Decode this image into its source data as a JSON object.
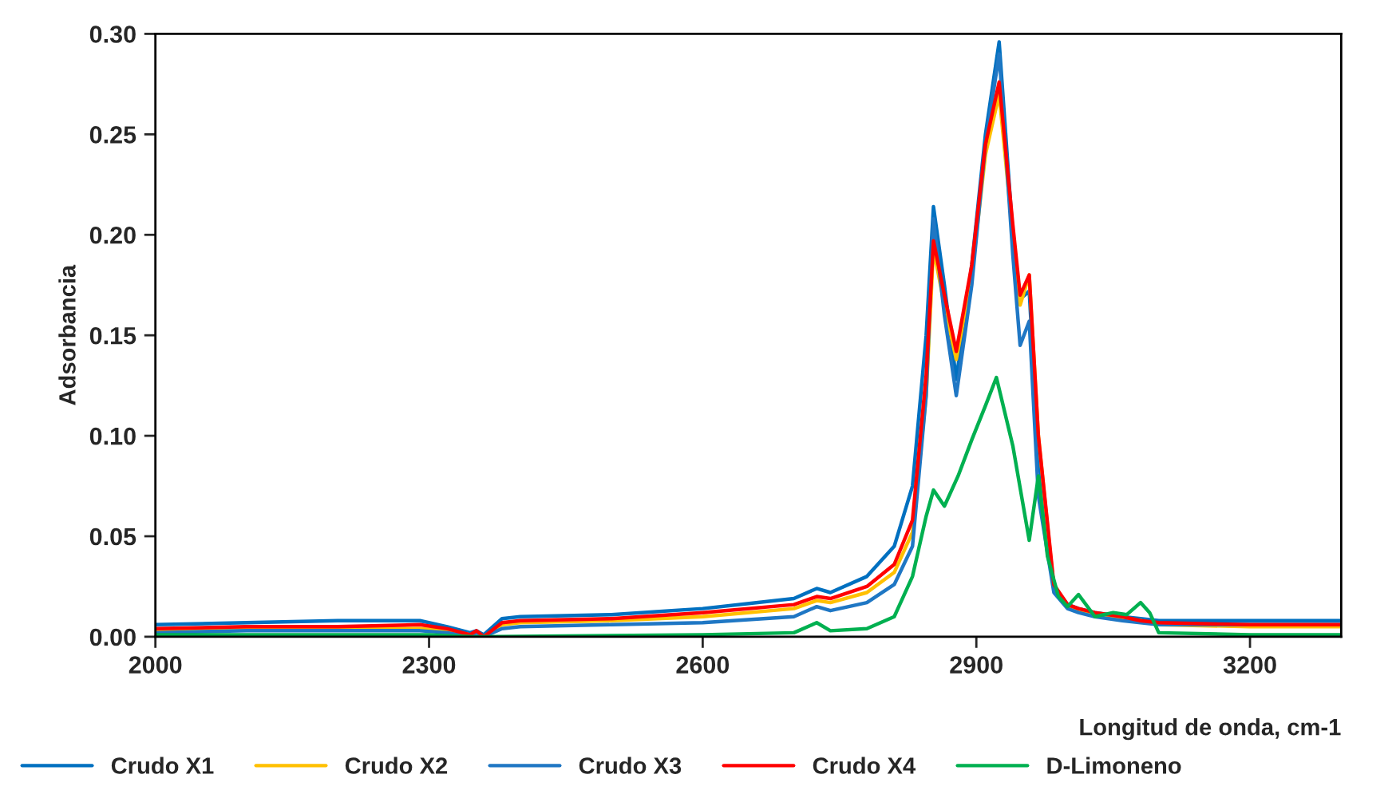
{
  "chart_data": {
    "type": "line",
    "xlabel": "Longitud de onda, cm-1",
    "ylabel": "Adsorbancia",
    "x": [
      2000,
      2100,
      2200,
      2290,
      2320,
      2345,
      2352,
      2360,
      2380,
      2400,
      2500,
      2600,
      2700,
      2725,
      2740,
      2780,
      2810,
      2830,
      2845,
      2853,
      2865,
      2878,
      2895,
      2910,
      2925,
      2940,
      2948,
      2958,
      2968,
      2985,
      3000,
      3012,
      3030,
      3060,
      3080,
      3100,
      3200,
      3300
    ],
    "series": [
      {
        "name": "Crudo X1",
        "color": "#0070c0",
        "values": [
          0.006,
          0.007,
          0.008,
          0.008,
          0.005,
          0.002,
          0.003,
          0.001,
          0.009,
          0.01,
          0.011,
          0.014,
          0.019,
          0.024,
          0.022,
          0.03,
          0.045,
          0.075,
          0.15,
          0.214,
          0.175,
          0.128,
          0.185,
          0.25,
          0.296,
          0.2,
          0.168,
          0.172,
          0.09,
          0.025,
          0.016,
          0.014,
          0.012,
          0.01,
          0.009,
          0.008,
          0.008,
          0.008
        ]
      },
      {
        "name": "Crudo X2",
        "color": "#ffc000",
        "values": [
          0.003,
          0.004,
          0.004,
          0.004,
          0.003,
          0.001,
          0.002,
          0.0,
          0.006,
          0.007,
          0.008,
          0.01,
          0.014,
          0.018,
          0.017,
          0.022,
          0.032,
          0.052,
          0.12,
          0.193,
          0.165,
          0.138,
          0.18,
          0.24,
          0.27,
          0.2,
          0.165,
          0.18,
          0.1,
          0.024,
          0.015,
          0.013,
          0.011,
          0.009,
          0.008,
          0.006,
          0.005,
          0.005
        ]
      },
      {
        "name": "Crudo X3",
        "color": "#1f77c4",
        "values": [
          0.002,
          0.003,
          0.003,
          0.003,
          0.002,
          0.0,
          0.002,
          0.0,
          0.004,
          0.005,
          0.006,
          0.007,
          0.01,
          0.015,
          0.013,
          0.017,
          0.026,
          0.045,
          0.12,
          0.208,
          0.16,
          0.12,
          0.175,
          0.245,
          0.29,
          0.19,
          0.145,
          0.157,
          0.07,
          0.022,
          0.014,
          0.012,
          0.01,
          0.008,
          0.007,
          0.006,
          0.006,
          0.006
        ]
      },
      {
        "name": "Crudo X4",
        "color": "#ff0000",
        "values": [
          0.004,
          0.005,
          0.005,
          0.006,
          0.004,
          0.001,
          0.003,
          0.0,
          0.007,
          0.008,
          0.009,
          0.012,
          0.016,
          0.02,
          0.019,
          0.025,
          0.036,
          0.058,
          0.13,
          0.197,
          0.17,
          0.142,
          0.185,
          0.245,
          0.276,
          0.205,
          0.17,
          0.18,
          0.1,
          0.026,
          0.016,
          0.014,
          0.012,
          0.01,
          0.008,
          0.007,
          0.006,
          0.006
        ]
      },
      {
        "name": "D-Limoneno",
        "color": "#00b050",
        "x": [
          2000,
          2300,
          2350,
          2600,
          2700,
          2725,
          2740,
          2780,
          2810,
          2830,
          2845,
          2853,
          2865,
          2880,
          2895,
          2910,
          2922,
          2940,
          2958,
          2968,
          2978,
          2990,
          3000,
          3012,
          3030,
          3050,
          3065,
          3080,
          3090,
          3100,
          3200,
          3300
        ],
        "values": [
          0.001,
          0.001,
          0.0,
          0.001,
          0.002,
          0.007,
          0.003,
          0.004,
          0.01,
          0.03,
          0.06,
          0.073,
          0.065,
          0.08,
          0.098,
          0.115,
          0.129,
          0.095,
          0.048,
          0.08,
          0.04,
          0.02,
          0.015,
          0.021,
          0.01,
          0.012,
          0.011,
          0.017,
          0.012,
          0.002,
          0.001,
          0.001
        ]
      }
    ],
    "xlim": [
      2000,
      3300
    ],
    "xticks": [
      2000,
      2300,
      2600,
      2900,
      3200
    ],
    "ylim": [
      0,
      0.3
    ],
    "yticks": [
      {
        "value": 0,
        "label": "0.00"
      },
      {
        "value": 0.05,
        "label": "0.05"
      },
      {
        "value": 0.1,
        "label": "0.10"
      },
      {
        "value": 0.15,
        "label": "0.15"
      },
      {
        "value": 0.2,
        "label": "0.20"
      },
      {
        "value": 0.25,
        "label": "0.25"
      },
      {
        "value": 0.3,
        "label": "0.30"
      }
    ],
    "grid": false,
    "legend": "bottom",
    "marker": "none",
    "line_style": "solid"
  }
}
